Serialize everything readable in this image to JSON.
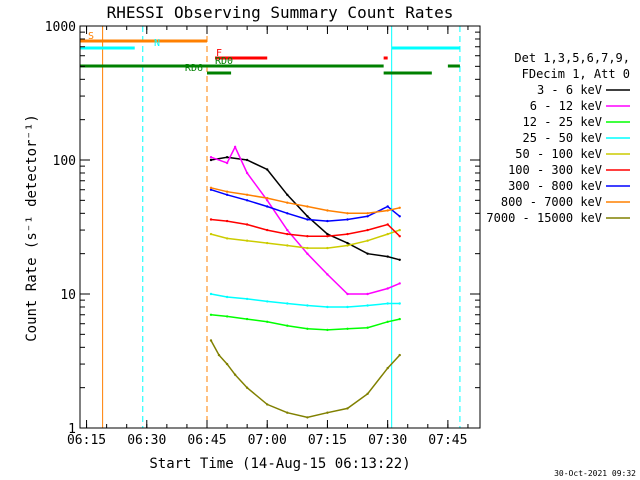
{
  "chart_data": {
    "type": "line",
    "title": "RHESSI Observing Summary Count Rates",
    "xlabel": "Start Time (14-Aug-15 06:13:22)",
    "ylabel": "Count Rate (s⁻¹ detector⁻¹)",
    "ylim": [
      1,
      1000
    ],
    "yscale": "log",
    "xlim": [
      "06:13:22",
      "07:53:00"
    ],
    "x_ticks": [
      "06:15",
      "06:30",
      "06:45",
      "07:00",
      "07:15",
      "07:30",
      "07:45"
    ],
    "y_ticks": [
      "1",
      "10",
      "100",
      "1000"
    ],
    "timestamp": "30-Oct-2021 09:32",
    "legend_header": [
      "Det 1,3,5,6,7,9,",
      "FDecim 1, Att 0"
    ],
    "legend_placement": "right",
    "series": [
      {
        "name": "3 - 6 keV",
        "color": "#000000",
        "x": [
          "06:46",
          "06:50",
          "06:55",
          "07:00",
          "07:05",
          "07:10",
          "07:15",
          "07:20",
          "07:25",
          "07:30",
          "07:33"
        ],
        "values": [
          100,
          105,
          100,
          85,
          55,
          38,
          28,
          24,
          20,
          19,
          18
        ]
      },
      {
        "name": "6 - 12 keV",
        "color": "#ff00ff",
        "x": [
          "06:46",
          "06:50",
          "06:52",
          "06:55",
          "07:00",
          "07:05",
          "07:10",
          "07:15",
          "07:20",
          "07:25",
          "07:30",
          "07:33"
        ],
        "values": [
          105,
          95,
          125,
          80,
          50,
          30,
          20,
          14,
          10,
          10,
          11,
          12
        ]
      },
      {
        "name": "12 - 25 keV",
        "color": "#00ff00",
        "x": [
          "06:46",
          "06:50",
          "06:55",
          "07:00",
          "07:05",
          "07:10",
          "07:15",
          "07:20",
          "07:25",
          "07:30",
          "07:33"
        ],
        "values": [
          7,
          6.8,
          6.5,
          6.2,
          5.8,
          5.5,
          5.4,
          5.5,
          5.6,
          6.2,
          6.5
        ]
      },
      {
        "name": "25 - 50 keV",
        "color": "#00ffff",
        "x": [
          "06:46",
          "06:50",
          "06:55",
          "07:00",
          "07:05",
          "07:10",
          "07:15",
          "07:20",
          "07:25",
          "07:30",
          "07:33"
        ],
        "values": [
          10,
          9.5,
          9.2,
          8.8,
          8.5,
          8.2,
          8.0,
          8.0,
          8.2,
          8.5,
          8.5
        ]
      },
      {
        "name": "50 - 100 keV",
        "color": "#cccc00",
        "x": [
          "06:46",
          "06:50",
          "06:55",
          "07:00",
          "07:05",
          "07:10",
          "07:15",
          "07:20",
          "07:25",
          "07:30",
          "07:33"
        ],
        "values": [
          28,
          26,
          25,
          24,
          23,
          22,
          22,
          23,
          25,
          28,
          30
        ]
      },
      {
        "name": "100 - 300 keV",
        "color": "#ff0000",
        "x": [
          "06:46",
          "06:50",
          "06:55",
          "07:00",
          "07:05",
          "07:10",
          "07:15",
          "07:20",
          "07:25",
          "07:30",
          "07:33"
        ],
        "values": [
          36,
          35,
          33,
          30,
          28,
          27,
          27,
          28,
          30,
          33,
          27
        ]
      },
      {
        "name": "300 - 800 keV",
        "color": "#0000ff",
        "x": [
          "06:46",
          "06:50",
          "06:55",
          "07:00",
          "07:05",
          "07:10",
          "07:15",
          "07:20",
          "07:25",
          "07:30",
          "07:33"
        ],
        "values": [
          60,
          55,
          50,
          45,
          40,
          36,
          35,
          36,
          38,
          45,
          38
        ]
      },
      {
        "name": "800 - 7000 keV",
        "color": "#ff8000",
        "x": [
          "06:46",
          "06:50",
          "06:55",
          "07:00",
          "07:05",
          "07:10",
          "07:15",
          "07:20",
          "07:25",
          "07:30",
          "07:33"
        ],
        "values": [
          62,
          58,
          55,
          52,
          48,
          45,
          42,
          40,
          40,
          42,
          44
        ]
      },
      {
        "name": "7000 - 15000 keV",
        "color": "#808000",
        "x": [
          "06:46",
          "06:48",
          "06:50",
          "06:52",
          "06:55",
          "07:00",
          "07:05",
          "07:10",
          "07:15",
          "07:20",
          "07:25",
          "07:30",
          "07:33"
        ],
        "values": [
          4.5,
          3.5,
          3.0,
          2.5,
          2.0,
          1.5,
          1.3,
          1.2,
          1.3,
          1.4,
          1.8,
          2.8,
          3.5
        ]
      }
    ],
    "flags": [
      {
        "label": "S",
        "color": "#ff8000",
        "start": "06:13:22",
        "end": "06:45",
        "level": 1
      },
      {
        "label": "N",
        "color": "#00ffff",
        "start": "06:13:22",
        "end": "06:27",
        "level": 2
      },
      {
        "label": "N",
        "color": "#00ffff",
        "start": "07:31",
        "end": "07:48",
        "level": 2
      },
      {
        "label": "F",
        "color": "#ff0000",
        "start": "06:47",
        "end": "07:00",
        "level": 3
      },
      {
        "label": "F",
        "color": "#ff0000",
        "start": "07:29",
        "end": "07:30",
        "level": 3
      },
      {
        "label": "RD0",
        "color": "#008000",
        "start": "06:13:22",
        "end": "07:29",
        "level": 4
      },
      {
        "label": "RD0",
        "color": "#008000",
        "start": "07:45",
        "end": "07:48",
        "level": 4
      },
      {
        "label": "RD6",
        "color": "#008000",
        "start": "06:45",
        "end": "06:51",
        "level": 5
      },
      {
        "label": "RD6",
        "color": "#008000",
        "start": "07:29",
        "end": "07:41",
        "level": 5
      }
    ],
    "vlines": [
      {
        "time": "06:19",
        "color": "#ff8000",
        "style": "solid"
      },
      {
        "time": "06:29",
        "color": "#00ffff",
        "style": "dashed"
      },
      {
        "time": "06:45",
        "color": "#ff8000",
        "style": "dashed"
      },
      {
        "time": "07:31",
        "color": "#00ffff",
        "style": "solid"
      },
      {
        "time": "07:48",
        "color": "#00ffff",
        "style": "dashed"
      }
    ]
  }
}
